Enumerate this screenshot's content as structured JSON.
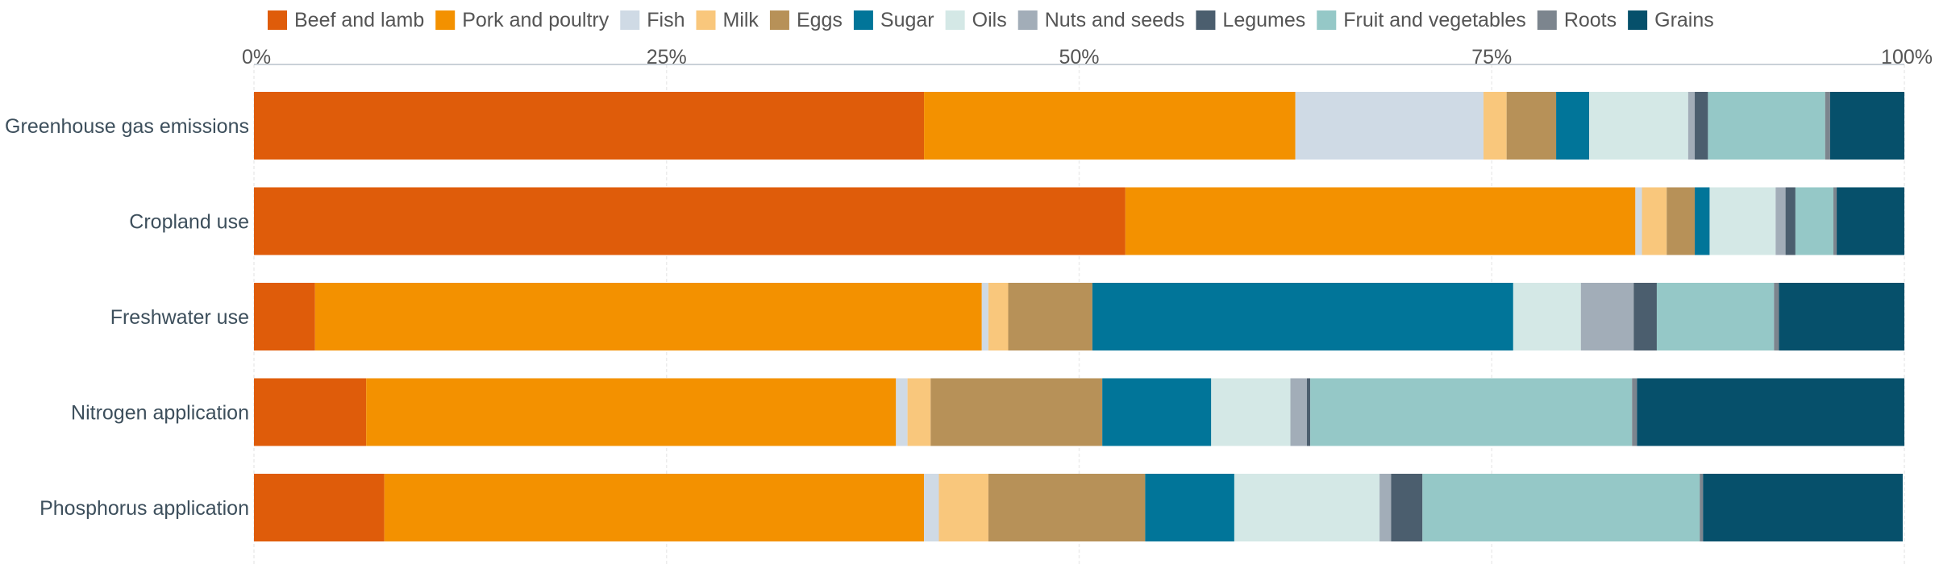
{
  "chart_data": {
    "type": "bar",
    "orientation": "horizontal",
    "stacked": true,
    "normalized": true,
    "xlim": [
      0,
      100
    ],
    "x_ticks": [
      0,
      25,
      50,
      75,
      100
    ],
    "x_tick_labels": [
      "0%",
      "25%",
      "50%",
      "75%",
      "100%"
    ],
    "legend_position": "top",
    "grid": "vertical",
    "categories": [
      "Greenhouse gas emissions",
      "Cropland use",
      "Freshwater use",
      "Nitrogen application",
      "Phosphorus application"
    ],
    "series": [
      {
        "name": "Beef and lamb",
        "color": "#df5c0a",
        "values": [
          40.6,
          52.8,
          3.7,
          6.8,
          7.9
        ]
      },
      {
        "name": "Pork and poultry",
        "color": "#f39100",
        "values": [
          22.5,
          30.9,
          40.4,
          32.1,
          32.7
        ]
      },
      {
        "name": "Fish",
        "color": "#cfdae5",
        "values": [
          11.4,
          0.4,
          0.4,
          0.7,
          0.9
        ]
      },
      {
        "name": "Milk",
        "color": "#f9c77c",
        "values": [
          1.4,
          1.5,
          1.2,
          1.4,
          3.0
        ]
      },
      {
        "name": "Eggs",
        "color": "#b79158",
        "values": [
          3.0,
          1.7,
          5.1,
          10.4,
          9.5
        ]
      },
      {
        "name": "Sugar",
        "color": "#017599",
        "values": [
          2.0,
          0.9,
          25.5,
          6.6,
          5.4
        ]
      },
      {
        "name": "Oils",
        "color": "#d4e8e6",
        "values": [
          6.0,
          4.0,
          4.1,
          4.8,
          8.8
        ]
      },
      {
        "name": "Nuts and seeds",
        "color": "#a2adb8",
        "values": [
          0.4,
          0.6,
          3.2,
          1.0,
          0.7
        ]
      },
      {
        "name": "Legumes",
        "color": "#4b5e6e",
        "values": [
          0.8,
          0.6,
          1.4,
          0.2,
          1.9
        ]
      },
      {
        "name": "Fruit and vegetables",
        "color": "#95c8c7",
        "values": [
          7.1,
          2.3,
          7.1,
          19.5,
          16.8
        ]
      },
      {
        "name": "Roots",
        "color": "#7c858e",
        "values": [
          0.3,
          0.2,
          0.3,
          0.3,
          0.2
        ]
      },
      {
        "name": "Grains",
        "color": "#06506b",
        "values": [
          4.5,
          4.1,
          7.6,
          16.2,
          12.1
        ]
      }
    ]
  }
}
